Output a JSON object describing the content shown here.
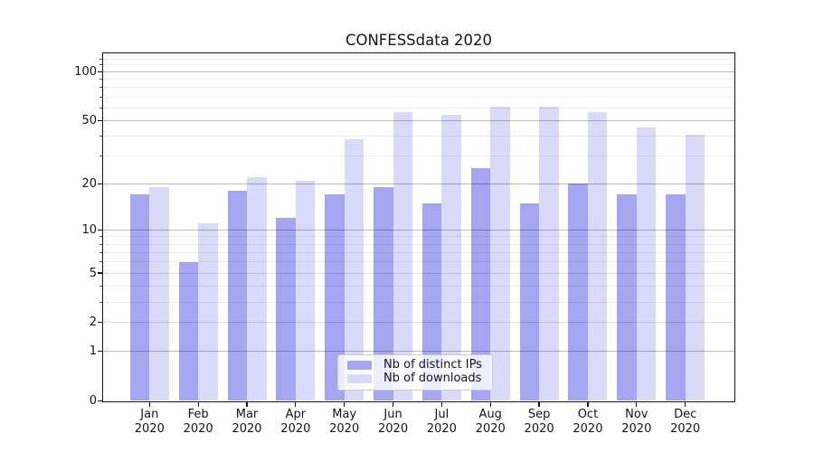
{
  "chart_data": {
    "type": "bar",
    "title": "CONFESSdata 2020",
    "categories": [
      "Jan 2020",
      "Feb 2020",
      "Mar 2020",
      "Apr 2020",
      "May 2020",
      "Jun 2020",
      "Jul 2020",
      "Aug 2020",
      "Sep 2020",
      "Oct 2020",
      "Nov 2020",
      "Dec 2020"
    ],
    "x_tick_lines": [
      [
        "Jan",
        "2020"
      ],
      [
        "Feb",
        "2020"
      ],
      [
        "Mar",
        "2020"
      ],
      [
        "Apr",
        "2020"
      ],
      [
        "May",
        "2020"
      ],
      [
        "Jun",
        "2020"
      ],
      [
        "Jul",
        "2020"
      ],
      [
        "Aug",
        "2020"
      ],
      [
        "Sep",
        "2020"
      ],
      [
        "Oct",
        "2020"
      ],
      [
        "Nov",
        "2020"
      ],
      [
        "Dec",
        "2020"
      ]
    ],
    "series": [
      {
        "name": "Nb of distinct IPs",
        "color": "#a5a5f2",
        "values": [
          17,
          6,
          18,
          12,
          17,
          19,
          15,
          25,
          15,
          20,
          17,
          17
        ]
      },
      {
        "name": "Nb of downloads",
        "color": "#d9d9f8",
        "values": [
          19,
          11,
          22,
          21,
          38,
          56,
          54,
          61,
          61,
          56,
          45,
          41
        ]
      }
    ],
    "xlabel": "",
    "ylabel": "",
    "yscale": "log1p",
    "ylim": [
      0,
      129
    ],
    "y_ticks": [
      0,
      1,
      2,
      5,
      10,
      20,
      50,
      100
    ],
    "y_tick_labels": [
      "0",
      "1",
      "2",
      "5",
      "10",
      "20",
      "50",
      "100"
    ],
    "y_minor_gridlines": [
      3,
      4,
      6,
      7,
      8,
      9,
      30,
      40,
      60,
      70,
      80,
      90,
      110,
      120
    ],
    "grid": "horizontal, major and minor, drawn above bars",
    "legend_position": "lower center"
  },
  "legend": {
    "items": [
      {
        "label": "Nb of distinct IPs",
        "color": "#a5a5f2"
      },
      {
        "label": "Nb of downloads",
        "color": "#d9d9f8"
      }
    ]
  }
}
